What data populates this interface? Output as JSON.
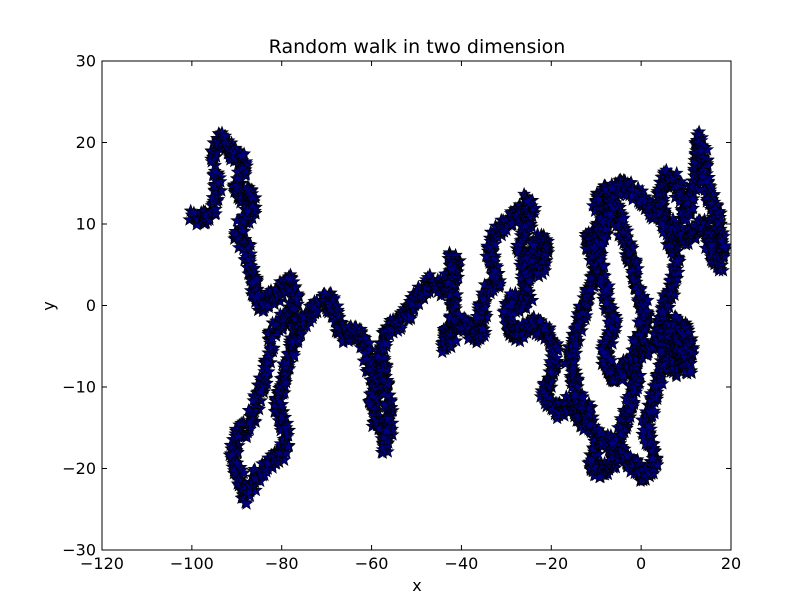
{
  "chart_data": {
    "type": "scatter",
    "title": "Random walk in two dimension",
    "xlabel": "x",
    "ylabel": "y",
    "xlim": [
      -120,
      20
    ],
    "ylim": [
      -30,
      30
    ],
    "xticks": [
      -120,
      -100,
      -80,
      -60,
      -40,
      -20,
      0,
      20
    ],
    "yticks": [
      -30,
      -20,
      -10,
      0,
      10,
      20,
      30
    ],
    "grid": false,
    "legend": "none",
    "marker": "star",
    "series": [
      {
        "color": "#00007f",
        "edgecolor": "#000000",
        "points": [
          [
            -100,
            11
          ],
          [
            -97,
            10.5
          ],
          [
            -95,
            12
          ],
          [
            -94,
            15
          ],
          [
            -95,
            18
          ],
          [
            -94,
            20.5
          ],
          [
            -92,
            20
          ],
          [
            -91,
            18.5
          ],
          [
            -89,
            18
          ],
          [
            -88,
            17
          ],
          [
            -90,
            15
          ],
          [
            -89,
            13
          ],
          [
            -87,
            14
          ],
          [
            -86,
            12
          ],
          [
            -88,
            11
          ],
          [
            -90,
            9
          ],
          [
            -88,
            7
          ],
          [
            -87,
            5
          ],
          [
            -86,
            3
          ],
          [
            -86,
            1
          ],
          [
            -84,
            0
          ],
          [
            -82,
            1
          ],
          [
            -80,
            2
          ],
          [
            -78,
            3
          ],
          [
            -77,
            1
          ],
          [
            -78,
            -1
          ],
          [
            -80,
            -2
          ],
          [
            -82,
            -3
          ],
          [
            -83,
            -6
          ],
          [
            -84,
            -9
          ],
          [
            -85,
            -11
          ],
          [
            -86,
            -13
          ],
          [
            -88,
            -15
          ],
          [
            -90,
            -16
          ],
          [
            -91,
            -18
          ],
          [
            -90,
            -20
          ],
          [
            -89,
            -22
          ],
          [
            -88,
            -23.5
          ],
          [
            -86,
            -21
          ],
          [
            -84,
            -20
          ],
          [
            -82,
            -19
          ],
          [
            -80,
            -18
          ],
          [
            -79,
            -16
          ],
          [
            -80,
            -14
          ],
          [
            -81,
            -12
          ],
          [
            -80,
            -10
          ],
          [
            -79,
            -8
          ],
          [
            -78,
            -6
          ],
          [
            -77,
            -4
          ],
          [
            -76,
            -2
          ],
          [
            -74,
            -1
          ],
          [
            -72,
            0
          ],
          [
            -70,
            1
          ],
          [
            -69,
            0
          ],
          [
            -68,
            -1
          ],
          [
            -67,
            -3
          ],
          [
            -66,
            -4
          ],
          [
            -64,
            -3
          ],
          [
            -62,
            -4
          ],
          [
            -61,
            -6
          ],
          [
            -60,
            -8
          ],
          [
            -59,
            -10
          ],
          [
            -60,
            -12
          ],
          [
            -59,
            -14
          ],
          [
            -58,
            -15
          ],
          [
            -57,
            -17.5
          ],
          [
            -56,
            -15
          ],
          [
            -56,
            -12
          ],
          [
            -57,
            -10
          ],
          [
            -57,
            -8
          ],
          [
            -58,
            -6
          ],
          [
            -57,
            -4
          ],
          [
            -56,
            -3
          ],
          [
            -54,
            -2
          ],
          [
            -52,
            -1
          ],
          [
            -51,
            0
          ],
          [
            -50,
            1
          ],
          [
            -48,
            2
          ],
          [
            -46,
            3
          ],
          [
            -44,
            2
          ],
          [
            -42,
            3
          ],
          [
            -41,
            5
          ],
          [
            -42,
            6
          ],
          [
            -43,
            4
          ],
          [
            -42,
            1
          ],
          [
            -41,
            -1
          ],
          [
            -43,
            -3
          ],
          [
            -44,
            -5
          ],
          [
            -42,
            -4
          ],
          [
            -40,
            -2
          ],
          [
            -38,
            -3
          ],
          [
            -36,
            -4
          ],
          [
            -35,
            -2
          ],
          [
            -36,
            0
          ],
          [
            -34,
            2
          ],
          [
            -32,
            3
          ],
          [
            -33,
            5
          ],
          [
            -34,
            7
          ],
          [
            -32,
            9
          ],
          [
            -30,
            10
          ],
          [
            -28,
            11
          ],
          [
            -26,
            12
          ],
          [
            -25,
            13
          ],
          [
            -24,
            11
          ],
          [
            -26,
            9
          ],
          [
            -27,
            7
          ],
          [
            -26,
            5
          ],
          [
            -24,
            4
          ],
          [
            -22,
            5
          ],
          [
            -21,
            7
          ],
          [
            -22,
            8
          ],
          [
            -24,
            7
          ],
          [
            -25,
            5
          ],
          [
            -26,
            3
          ],
          [
            -25,
            1
          ],
          [
            -27,
            0
          ],
          [
            -29,
            1
          ],
          [
            -30,
            -1
          ],
          [
            -29,
            -3
          ],
          [
            -28,
            -4
          ],
          [
            -26,
            -3
          ],
          [
            -24,
            -2
          ],
          [
            -22,
            -3
          ],
          [
            -20,
            -4
          ],
          [
            -19,
            -6
          ],
          [
            -20,
            -8
          ],
          [
            -21,
            -10
          ],
          [
            -22,
            -11
          ],
          [
            -20,
            -12
          ],
          [
            -18,
            -13
          ],
          [
            -16,
            -12
          ],
          [
            -14,
            -13
          ],
          [
            -13,
            -14
          ],
          [
            -11,
            -15
          ],
          [
            -12,
            -13
          ],
          [
            -14,
            -11
          ],
          [
            -15,
            -9
          ],
          [
            -16,
            -7
          ],
          [
            -15,
            -5
          ],
          [
            -14,
            -3
          ],
          [
            -13,
            -1
          ],
          [
            -12,
            1
          ],
          [
            -11,
            3
          ],
          [
            -10,
            5
          ],
          [
            -11,
            7
          ],
          [
            -12,
            8
          ],
          [
            -10,
            9
          ],
          [
            -8,
            10
          ],
          [
            -9,
            12
          ],
          [
            -10,
            13
          ],
          [
            -8,
            14
          ],
          [
            -6,
            13
          ],
          [
            -5,
            11
          ],
          [
            -4,
            9
          ],
          [
            -3,
            7
          ],
          [
            -2,
            5
          ],
          [
            -1,
            3
          ],
          [
            0,
            1
          ],
          [
            1,
            -1
          ],
          [
            0,
            -3
          ],
          [
            -1,
            -5
          ],
          [
            -2,
            -7
          ],
          [
            -1,
            -9
          ],
          [
            -2,
            -11
          ],
          [
            -3,
            -13
          ],
          [
            -4,
            -15
          ],
          [
            -5,
            -17
          ],
          [
            -6,
            -19
          ],
          [
            -8,
            -20
          ],
          [
            -10,
            -20.5
          ],
          [
            -11,
            -19
          ],
          [
            -10,
            -17
          ],
          [
            -9,
            -16
          ],
          [
            -7,
            -17
          ],
          [
            -5,
            -18
          ],
          [
            -3,
            -19
          ],
          [
            -1,
            -20
          ],
          [
            0,
            -21
          ],
          [
            2,
            -20.5
          ],
          [
            3,
            -19
          ],
          [
            2,
            -17
          ],
          [
            1,
            -15
          ],
          [
            2,
            -13
          ],
          [
            3,
            -11
          ],
          [
            4,
            -9
          ],
          [
            5,
            -7
          ],
          [
            6,
            -5
          ],
          [
            7,
            -4
          ],
          [
            8,
            -3
          ],
          [
            9,
            -5
          ],
          [
            8,
            -7
          ],
          [
            7,
            -8
          ],
          [
            6,
            -7
          ],
          [
            5,
            -5
          ],
          [
            4,
            -3
          ],
          [
            5,
            -1
          ],
          [
            6,
            1
          ],
          [
            7,
            3
          ],
          [
            8,
            5
          ],
          [
            7,
            7
          ],
          [
            6,
            9
          ],
          [
            5,
            11
          ],
          [
            4,
            13
          ],
          [
            5,
            15
          ],
          [
            6,
            16
          ],
          [
            8,
            15
          ],
          [
            9,
            13
          ],
          [
            10,
            11
          ],
          [
            11,
            13
          ],
          [
            12,
            15
          ],
          [
            12.5,
            18
          ],
          [
            13,
            20.5
          ],
          [
            14,
            18
          ],
          [
            14,
            16
          ],
          [
            15,
            14
          ],
          [
            16,
            12
          ],
          [
            17,
            11
          ],
          [
            17,
            9
          ],
          [
            18,
            7
          ],
          [
            17.5,
            5
          ],
          [
            16,
            6
          ],
          [
            15,
            8
          ],
          [
            14,
            10
          ],
          [
            12,
            9
          ],
          [
            10,
            8
          ],
          [
            8,
            9
          ],
          [
            6,
            10
          ],
          [
            4,
            11
          ],
          [
            2,
            12
          ],
          [
            0,
            13
          ],
          [
            -2,
            14
          ],
          [
            -4,
            15
          ],
          [
            -6,
            14
          ],
          [
            -7,
            12
          ],
          [
            -8,
            10
          ],
          [
            -9,
            8
          ],
          [
            -10,
            6
          ],
          [
            -9,
            4
          ],
          [
            -8,
            2
          ],
          [
            -7,
            0
          ],
          [
            -6,
            -2
          ],
          [
            -7,
            -4
          ],
          [
            -8,
            -6
          ],
          [
            -7,
            -8
          ],
          [
            -6,
            -9
          ],
          [
            -4,
            -8
          ],
          [
            -2,
            -7
          ],
          [
            0,
            -6
          ],
          [
            2,
            -5
          ],
          [
            4,
            -4
          ],
          [
            6,
            -3
          ],
          [
            8,
            -2
          ],
          [
            10,
            -3
          ],
          [
            11,
            -5
          ],
          [
            10,
            -7
          ],
          [
            11,
            -8
          ]
        ]
      }
    ]
  }
}
